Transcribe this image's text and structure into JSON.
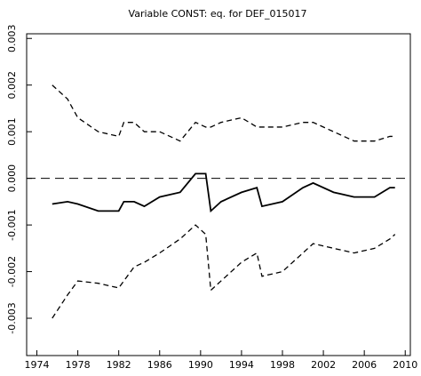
{
  "chart_data": {
    "type": "line",
    "title": "Variable CONST: eq. for DEF_015017",
    "x": [
      1975.5,
      1977,
      1978,
      1980,
      1982,
      1982.5,
      1983.5,
      1984.5,
      1986,
      1988,
      1989.5,
      1990.5,
      1991,
      1992,
      1994,
      1995.5,
      1996,
      1998,
      2000,
      2001,
      2003,
      2005,
      2007,
      2008.5,
      2009
    ],
    "series": [
      {
        "color": "#000000",
        "dashed": true,
        "values": [
          0.002,
          0.0017,
          0.0013,
          0.001,
          0.0009,
          0.0012,
          0.0012,
          0.001,
          0.001,
          0.0008,
          0.0012,
          0.0011,
          0.0011,
          0.0012,
          0.0013,
          0.0011,
          0.0011,
          0.0011,
          0.0012,
          0.0012,
          0.001,
          0.0008,
          0.0008,
          0.0009,
          0.0009
        ]
      },
      {
        "color": "#000000",
        "dashed": false,
        "values": [
          -0.00055,
          -0.0005,
          -0.00055,
          -0.0007,
          -0.0007,
          -0.0005,
          -0.0005,
          -0.0006,
          -0.0004,
          -0.0003,
          0.0001,
          0.0001,
          -0.0007,
          -0.0005,
          -0.0003,
          -0.0002,
          -0.0006,
          -0.0005,
          -0.0002,
          -0.0001,
          -0.0003,
          -0.0004,
          -0.0004,
          -0.0002,
          -0.0002
        ]
      },
      {
        "color": "#000000",
        "dashed": true,
        "values": [
          -0.003,
          -0.0025,
          -0.0022,
          -0.00225,
          -0.00235,
          -0.0022,
          -0.0019,
          -0.0018,
          -0.0016,
          -0.0013,
          -0.001,
          -0.0012,
          -0.0024,
          -0.0022,
          -0.0018,
          -0.0016,
          -0.0021,
          -0.002,
          -0.0016,
          -0.0014,
          -0.0015,
          -0.0016,
          -0.0015,
          -0.0013,
          -0.0012
        ]
      }
    ],
    "reference_line": 0,
    "xlim": [
      1973,
      2010.5
    ],
    "xticks": [
      1974,
      1978,
      1982,
      1986,
      1990,
      1994,
      1998,
      2002,
      2006,
      2010
    ],
    "ylim": [
      -0.0038,
      0.0031
    ],
    "yticks": [
      0.003,
      0.002,
      0.001,
      {
        "value": 0,
        "label": "0.000"
      },
      -0.001,
      -0.002,
      -0.003
    ]
  }
}
